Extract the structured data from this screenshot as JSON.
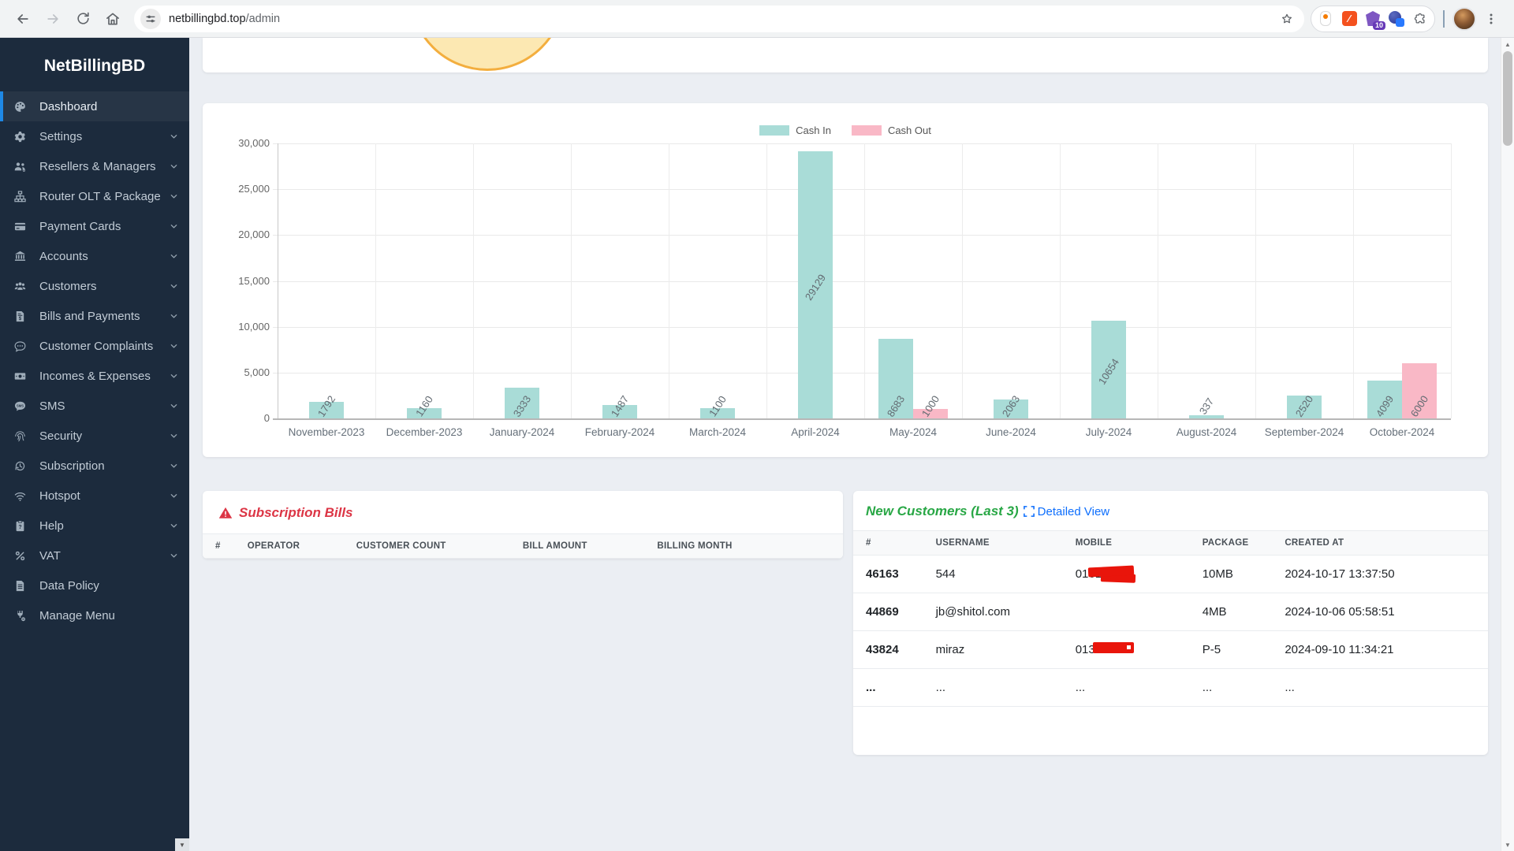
{
  "browser": {
    "url_host": "netbillingbd.top",
    "url_path": "/admin",
    "extensions": [
      {
        "name": "extension-1"
      },
      {
        "name": "extension-2"
      },
      {
        "name": "extension-3",
        "badge": "10"
      },
      {
        "name": "extension-4"
      }
    ]
  },
  "sidebar": {
    "brand": "NetBillingBD",
    "items": [
      {
        "label": "Dashboard",
        "icon": "palette",
        "active": true,
        "chevron": false
      },
      {
        "label": "Settings",
        "icon": "gear",
        "chevron": true
      },
      {
        "label": "Resellers & Managers",
        "icon": "users-gear",
        "chevron": true
      },
      {
        "label": "Router OLT & Package",
        "icon": "sitemap",
        "chevron": true
      },
      {
        "label": "Payment Cards",
        "icon": "credit-card",
        "chevron": true
      },
      {
        "label": "Accounts",
        "icon": "bank",
        "chevron": true
      },
      {
        "label": "Customers",
        "icon": "users",
        "chevron": true
      },
      {
        "label": "Bills and Payments",
        "icon": "file-invoice",
        "chevron": true
      },
      {
        "label": "Customer Complaints",
        "icon": "comment-dots",
        "chevron": true
      },
      {
        "label": "Incomes & Expenses",
        "icon": "money-bill",
        "chevron": true
      },
      {
        "label": "SMS",
        "icon": "comment-sms",
        "chevron": true
      },
      {
        "label": "Security",
        "icon": "fingerprint",
        "chevron": true
      },
      {
        "label": "Subscription",
        "icon": "history",
        "chevron": true
      },
      {
        "label": "Hotspot",
        "icon": "wifi",
        "chevron": true
      },
      {
        "label": "Help",
        "icon": "clipboard-question",
        "chevron": true
      },
      {
        "label": "VAT",
        "icon": "percent",
        "chevron": true
      },
      {
        "label": "Data Policy",
        "icon": "file-lines",
        "chevron": false
      },
      {
        "label": "Manage Menu",
        "icon": "plug",
        "chevron": false
      }
    ]
  },
  "chart_card": {
    "y_ticks": [
      "30,000",
      "25,000",
      "20,000",
      "15,000",
      "10,000",
      "5,000",
      "0"
    ]
  },
  "chart_data": {
    "type": "bar",
    "categories": [
      "November-2023",
      "December-2023",
      "January-2024",
      "February-2024",
      "March-2024",
      "April-2024",
      "May-2024",
      "June-2024",
      "July-2024",
      "August-2024",
      "September-2024",
      "October-2024"
    ],
    "series": [
      {
        "name": "Cash In",
        "color": "#a9dcd7",
        "values": [
          1792,
          1160,
          3333,
          1487,
          1100,
          29129,
          8683,
          2063,
          10654,
          337,
          2520,
          4099
        ]
      },
      {
        "name": "Cash Out",
        "color": "#f9b8c6",
        "values": [
          null,
          null,
          null,
          null,
          null,
          null,
          1000,
          null,
          null,
          null,
          null,
          6000
        ]
      }
    ],
    "title": "",
    "xlabel": "",
    "ylabel": "",
    "ylim": [
      0,
      30000
    ],
    "grid": true,
    "legend_position": "top-center"
  },
  "bills_card": {
    "title": "Subscription Bills",
    "headers": [
      "#",
      "OPERATOR",
      "CUSTOMER COUNT",
      "BILL AMOUNT",
      "BILLING MONTH"
    ],
    "rows": []
  },
  "customers_card": {
    "title": "New Customers (Last 3)",
    "link_label": "Detailed View",
    "headers": [
      "#",
      "USERNAME",
      "MOBILE",
      "PACKAGE",
      "CREATED AT"
    ],
    "rows": [
      {
        "id": "46163",
        "username": "544",
        "mobile": "01612",
        "mobile_redacted": true,
        "package": "10MB",
        "created_at": "2024-10-17 13:37:50"
      },
      {
        "id": "44869",
        "username": "jb@shitol.com",
        "mobile": "",
        "mobile_redacted": false,
        "package": "4MB",
        "created_at": "2024-10-06 05:58:51"
      },
      {
        "id": "43824",
        "username": "miraz",
        "mobile": "0132",
        "mobile_redacted": true,
        "package": "P-5",
        "created_at": "2024-09-10 11:34:21"
      },
      {
        "id": "...",
        "username": "...",
        "mobile": "...",
        "mobile_redacted": false,
        "package": "...",
        "created_at": "..."
      }
    ]
  }
}
